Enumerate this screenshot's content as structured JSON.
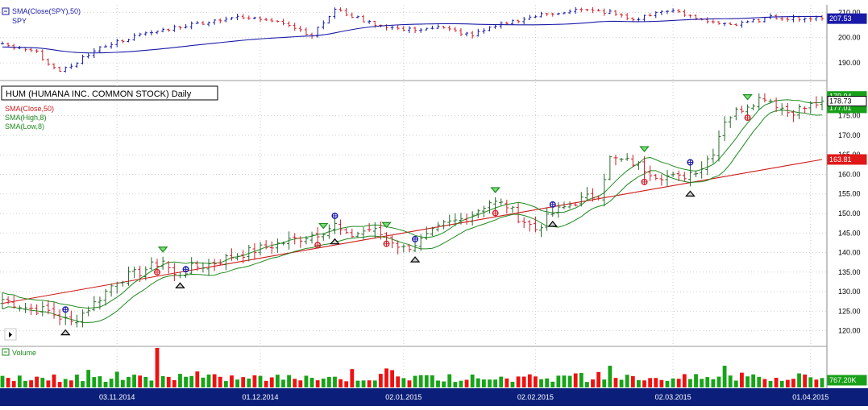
{
  "colors": {
    "up_bar": "#2a6a2a",
    "down_bar": "#d0202a",
    "sma_spy": "#1a1aa8",
    "sma_close": "#d01c1c",
    "sma_band": "#1f8a1f",
    "vol_up": "#17a317",
    "vol_down": "#ee1111",
    "date_axis_bg": "#0b1f7a",
    "grid": "#cfcfcf",
    "price_tag_last": "#ffffff",
    "price_tag_green": "#18a018",
    "price_tag_red": "#e01818",
    "price_tag_blue": "#1a1aa8"
  },
  "spy_panel": {
    "legend_sma": "SMA(Close(SPY),50)",
    "legend_symbol": "SPY",
    "last_tag": "207.53"
  },
  "main_panel": {
    "title": "HUM (HUMANA INC. COMMON STOCK) Daily",
    "legend_sma_close": "SMA(Close,50)",
    "legend_sma_high": "SMA(High,8)",
    "legend_sma_low": "SMA(Low,8)",
    "tag_last_close": "178.73",
    "tag_sma_high": "179.94",
    "tag_sma_low": "177.01",
    "tag_sma_close": "163.81"
  },
  "volume_panel": {
    "label": "Volume",
    "last_tag": "767.20K"
  },
  "chart_data": [
    {
      "type": "line",
      "panel": "SPY",
      "series": [
        {
          "name": "SPY",
          "style": "ohlc",
          "values": "generated daily path ~ 187 to 212, last close 207.53"
        },
        {
          "name": "SMA(Close(SPY),50)",
          "last": 207.53
        }
      ],
      "y_ticks": [
        "210.00",
        "200.00",
        "190.00"
      ],
      "ylim": [
        183,
        213
      ]
    },
    {
      "type": "line",
      "panel": "HUM",
      "title": "HUM (HUMANA INC. COMMON STOCK) Daily",
      "x_labels": [
        "03.11.2014",
        "01.12.2014",
        "02.01.2015",
        "02.02.2015",
        "02.03.2015",
        "01.04.2015"
      ],
      "y_ticks": [
        "175.00",
        "170.00",
        "165.00",
        "160.00",
        "155.00",
        "150.00",
        "145.00",
        "140.00",
        "135.00",
        "130.00",
        "125.00",
        "120.00"
      ],
      "ylim": [
        116,
        184
      ],
      "anchors": [
        [
          0,
          128
        ],
        [
          4,
          126
        ],
        [
          8,
          125
        ],
        [
          12,
          122
        ],
        [
          16,
          127
        ],
        [
          20,
          133
        ],
        [
          24,
          135
        ],
        [
          28,
          138
        ],
        [
          30,
          134
        ],
        [
          33,
          136
        ],
        [
          36,
          137
        ],
        [
          40,
          139
        ],
        [
          45,
          141
        ],
        [
          50,
          143
        ],
        [
          55,
          145
        ],
        [
          58,
          147
        ],
        [
          60,
          144
        ],
        [
          62,
          145
        ],
        [
          64,
          146
        ],
        [
          67,
          144
        ],
        [
          70,
          141
        ],
        [
          73,
          143
        ],
        [
          77,
          147
        ],
        [
          81,
          149
        ],
        [
          85,
          153
        ],
        [
          88,
          152
        ],
        [
          90,
          149
        ],
        [
          93,
          146
        ],
        [
          96,
          150
        ],
        [
          100,
          153
        ],
        [
          104,
          155
        ],
        [
          106,
          164
        ],
        [
          110,
          163
        ],
        [
          114,
          160
        ],
        [
          118,
          159
        ],
        [
          122,
          162
        ],
        [
          124,
          166
        ],
        [
          126,
          174
        ],
        [
          130,
          178
        ],
        [
          133,
          180
        ],
        [
          137,
          176
        ],
        [
          140,
          177
        ],
        [
          143,
          178.73
        ]
      ],
      "series": [
        {
          "name": "SMA(Close,50)",
          "last": 163.81
        },
        {
          "name": "SMA(High,8)",
          "last": 179.94
        },
        {
          "name": "SMA(Low,8)",
          "last": 177.01
        }
      ],
      "signals": [
        {
          "kind": "blue-plus",
          "bar": 11
        },
        {
          "kind": "red-plus",
          "bar": 27
        },
        {
          "kind": "blue-plus",
          "bar": 32
        },
        {
          "kind": "red-plus",
          "bar": 55
        },
        {
          "kind": "blue-plus",
          "bar": 58
        },
        {
          "kind": "red-plus",
          "bar": 67
        },
        {
          "kind": "blue-plus",
          "bar": 72
        },
        {
          "kind": "red-plus",
          "bar": 86
        },
        {
          "kind": "blue-plus",
          "bar": 96
        },
        {
          "kind": "red-plus",
          "bar": 112
        },
        {
          "kind": "blue-plus",
          "bar": 120
        },
        {
          "kind": "red-plus",
          "bar": 130
        },
        {
          "kind": "up-triangle",
          "bar": 11
        },
        {
          "kind": "up-triangle",
          "bar": 31
        },
        {
          "kind": "up-triangle",
          "bar": 58
        },
        {
          "kind": "up-triangle",
          "bar": 72
        },
        {
          "kind": "up-triangle",
          "bar": 96
        },
        {
          "kind": "up-triangle",
          "bar": 120
        },
        {
          "kind": "down-triangle",
          "bar": 28
        },
        {
          "kind": "down-triangle",
          "bar": 56
        },
        {
          "kind": "down-triangle",
          "bar": 67
        },
        {
          "kind": "down-triangle",
          "bar": 86
        },
        {
          "kind": "down-triangle",
          "bar": 112
        },
        {
          "kind": "down-triangle",
          "bar": 130
        }
      ]
    },
    {
      "type": "bar",
      "panel": "Volume",
      "series": [
        {
          "name": "Volume",
          "last": "767.20K"
        }
      ],
      "spike_bar": 27
    }
  ]
}
